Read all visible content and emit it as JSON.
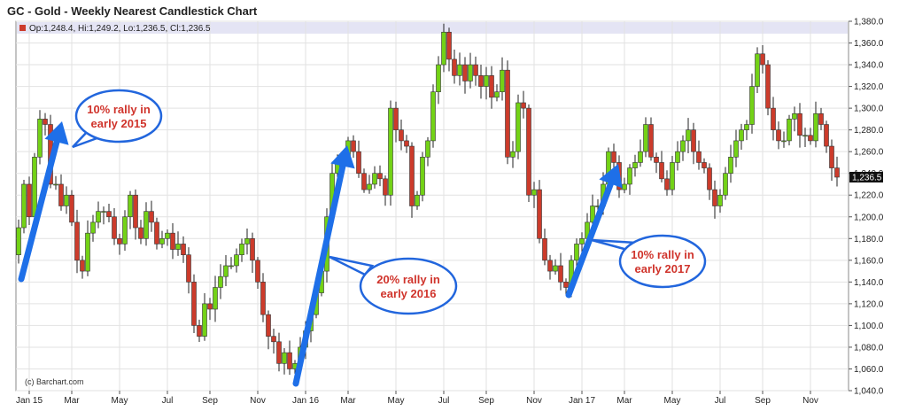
{
  "chart_data": {
    "type": "candlestick",
    "title": "GC - Gold - Weekly Nearest Candlestick Chart",
    "ohlc_label": "Op:1,248.4, Hi:1,249.2, Lo:1,236.5, Cl:1,236.5",
    "credit": "(c) Barchart.com",
    "last_price_label": "1,236.5",
    "ylim": [
      1040,
      1380
    ],
    "yticks": [
      1040,
      1060,
      1080,
      1100,
      1120,
      1140,
      1160,
      1180,
      1200,
      1220,
      1240,
      1260,
      1280,
      1300,
      1320,
      1340,
      1360,
      1380
    ],
    "ytick_labels": [
      "1,040.0",
      "1,060.0",
      "1,080.0",
      "1,100.0",
      "1,120.0",
      "1,140.0",
      "1,160.0",
      "1,180.0",
      "1,200.0",
      "1,220.0",
      "1,240.0",
      "1,260.0",
      "1,280.0",
      "1,300.0",
      "1,320.0",
      "1,340.0",
      "1,360.0",
      "1,380.0"
    ],
    "xticks": [
      {
        "label": "Jan 15",
        "week": 2
      },
      {
        "label": "Mar",
        "week": 10
      },
      {
        "label": "May",
        "week": 19
      },
      {
        "label": "Jul",
        "week": 28
      },
      {
        "label": "Sep",
        "week": 36
      },
      {
        "label": "Nov",
        "week": 45
      },
      {
        "label": "Jan 16",
        "week": 54
      },
      {
        "label": "Mar",
        "week": 62
      },
      {
        "label": "May",
        "week": 71
      },
      {
        "label": "Jul",
        "week": 80
      },
      {
        "label": "Sep",
        "week": 88
      },
      {
        "label": "Nov",
        "week": 97
      },
      {
        "label": "Jan 17",
        "week": 106
      },
      {
        "label": "Mar",
        "week": 114
      },
      {
        "label": "May",
        "week": 123
      },
      {
        "label": "Jul",
        "week": 132
      },
      {
        "label": "Sep",
        "week": 140
      },
      {
        "label": "Nov",
        "week": 149
      }
    ],
    "colors": {
      "up": "#73d216",
      "down": "#cc3b2b",
      "arrow": "#1e6fe8",
      "callout_border": "#2266dd",
      "callout_text": "#d0342c",
      "last_price_bg": "#111111",
      "header_band": "#e4e4f4"
    },
    "close": [
      1190,
      1230,
      1200,
      1255,
      1290,
      1285,
      1230,
      1230,
      1210,
      1220,
      1195,
      1160,
      1150,
      1185,
      1195,
      1205,
      1205,
      1200,
      1180,
      1175,
      1200,
      1220,
      1190,
      1180,
      1205,
      1195,
      1175,
      1180,
      1185,
      1170,
      1175,
      1165,
      1140,
      1100,
      1090,
      1120,
      1115,
      1135,
      1145,
      1155,
      1155,
      1165,
      1175,
      1180,
      1160,
      1140,
      1110,
      1090,
      1085,
      1065,
      1075,
      1060,
      1065,
      1080,
      1095,
      1110,
      1130,
      1150,
      1200,
      1240,
      1250,
      1255,
      1270,
      1260,
      1240,
      1225,
      1230,
      1240,
      1235,
      1220,
      1300,
      1280,
      1270,
      1265,
      1210,
      1220,
      1255,
      1270,
      1315,
      1340,
      1370,
      1345,
      1330,
      1340,
      1325,
      1340,
      1330,
      1320,
      1330,
      1310,
      1315,
      1335,
      1255,
      1260,
      1305,
      1300,
      1220,
      1225,
      1180,
      1160,
      1150,
      1155,
      1140,
      1135,
      1160,
      1175,
      1180,
      1195,
      1210,
      1210,
      1230,
      1260,
      1250,
      1225,
      1230,
      1245,
      1250,
      1260,
      1285,
      1255,
      1250,
      1235,
      1225,
      1250,
      1260,
      1270,
      1280,
      1260,
      1250,
      1245,
      1225,
      1210,
      1220,
      1240,
      1255,
      1270,
      1280,
      1285,
      1320,
      1350,
      1340,
      1300,
      1280,
      1270,
      1270,
      1290,
      1295,
      1275,
      1275,
      1270,
      1295,
      1285,
      1265,
      1245,
      1236.5
    ],
    "annotations": [
      {
        "text": [
          "10% rally in",
          "early 2015"
        ],
        "arrow_from_week": 0,
        "arrow_to_week": 5
      },
      {
        "text": [
          "20% rally in",
          "early 2016"
        ],
        "arrow_from_week": 50,
        "arrow_to_week": 62
      },
      {
        "text": [
          "10% rally in",
          "early 2017"
        ],
        "arrow_from_week": 102,
        "arrow_to_week": 112
      }
    ]
  }
}
